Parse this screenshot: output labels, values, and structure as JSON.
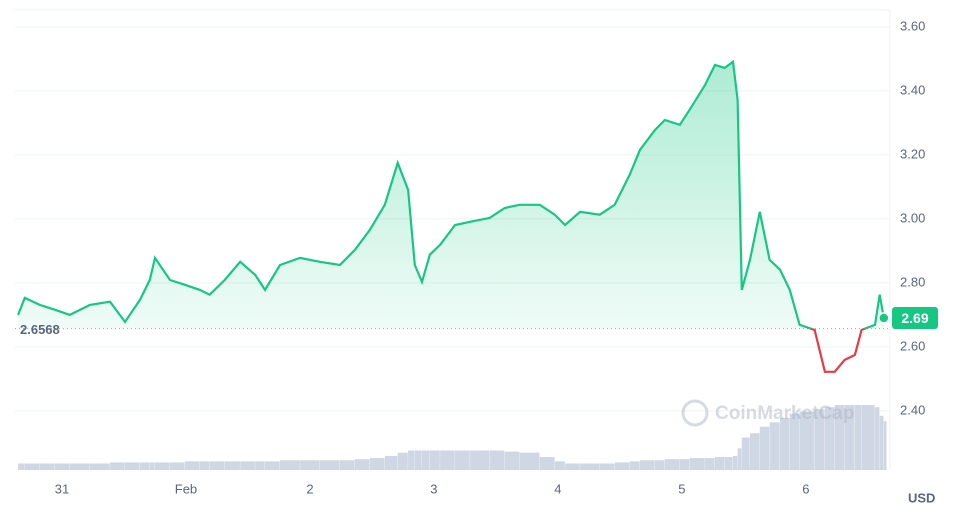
{
  "chart_data": {
    "type": "line",
    "x": [
      -8.5,
      -7.2,
      -4.3,
      -1.4,
      1.5,
      5.4,
      9.3,
      12.2,
      15.1,
      17.0,
      18.0,
      20.9,
      23.8,
      26.7,
      28.6,
      31.5,
      34.5,
      37.4,
      39.3,
      42.2,
      46.1,
      49.9,
      53.8,
      56.7,
      59.6,
      62.5,
      65.0,
      67.0,
      68.3,
      69.7,
      71.2,
      73.2,
      76.1,
      79.0,
      82.8,
      85.7,
      88.6,
      92.5,
      95.4,
      97.4,
      100.3,
      104.1,
      107.0,
      109.9,
      111.9,
      114.8,
      116.7,
      119.6,
      121.5,
      124.5,
      126.4,
      128.3,
      129.9,
      130.8,
      131.6,
      133.2,
      135.1,
      137.0,
      139.0,
      140.9,
      142.8,
      145.7,
      147.7,
      149.6,
      151.5,
      153.5,
      154.8,
      157.4,
      158.3,
      159.1
    ],
    "series": [
      {
        "name": "Price",
        "color": "#16c784",
        "below_color": "#ea3943",
        "values": [
          2.7,
          2.753,
          2.731,
          2.716,
          2.7,
          2.731,
          2.741,
          2.678,
          2.747,
          2.809,
          2.878,
          2.809,
          2.794,
          2.778,
          2.763,
          2.809,
          2.866,
          2.825,
          2.778,
          2.856,
          2.878,
          2.866,
          2.856,
          2.903,
          2.966,
          3.044,
          3.175,
          3.091,
          2.856,
          2.803,
          2.888,
          2.919,
          2.981,
          2.991,
          3.003,
          3.034,
          3.044,
          3.044,
          3.013,
          2.981,
          3.022,
          3.013,
          3.044,
          3.138,
          3.216,
          3.278,
          3.309,
          3.294,
          3.341,
          3.419,
          3.481,
          3.472,
          3.491,
          3.372,
          2.778,
          2.872,
          3.022,
          2.872,
          2.841,
          2.778,
          2.669,
          2.653,
          2.522,
          2.522,
          2.559,
          2.575,
          2.653,
          2.669,
          2.763,
          2.69
        ]
      },
      {
        "name": "Volume",
        "color": "#cfd6e4",
        "values": [
          6,
          6,
          6,
          6,
          6,
          6,
          7,
          7,
          7,
          7,
          7,
          7,
          8,
          8,
          8,
          8,
          8,
          8,
          8,
          9,
          9,
          9,
          9,
          10,
          11,
          13,
          16,
          18,
          18,
          18,
          18,
          18,
          18,
          18,
          18,
          17,
          16,
          12,
          8,
          6,
          6,
          6,
          7,
          8,
          9,
          9,
          10,
          10,
          11,
          11,
          12,
          12,
          13,
          20,
          30,
          34,
          40,
          44,
          48,
          52,
          54,
          56,
          58,
          60,
          60,
          60,
          60,
          58,
          50,
          45
        ]
      }
    ],
    "baseline": 2.6568,
    "price_tag": 2.69,
    "currency": "USD",
    "watermark": "CoinMarketCap",
    "xlim": [
      -9.1,
      160.3
    ],
    "xticks": [
      {
        "value": 0,
        "label": "31"
      },
      {
        "value": 24,
        "label": "Feb"
      },
      {
        "value": 48,
        "label": "2"
      },
      {
        "value": 72,
        "label": "3"
      },
      {
        "value": 96,
        "label": "4"
      },
      {
        "value": 120,
        "label": "5"
      },
      {
        "value": 144,
        "label": "6"
      }
    ],
    "ylim": [
      2.215,
      3.653
    ],
    "yticks": [
      {
        "value": 2.4,
        "label": "2.40"
      },
      {
        "value": 2.6,
        "label": "2.60"
      },
      {
        "value": 2.8,
        "label": "2.80"
      },
      {
        "value": 3.0,
        "label": "3.00"
      },
      {
        "value": 3.2,
        "label": "3.20"
      },
      {
        "value": 3.4,
        "label": "3.40"
      },
      {
        "value": 3.6,
        "label": "3.60"
      }
    ],
    "grid": true
  }
}
